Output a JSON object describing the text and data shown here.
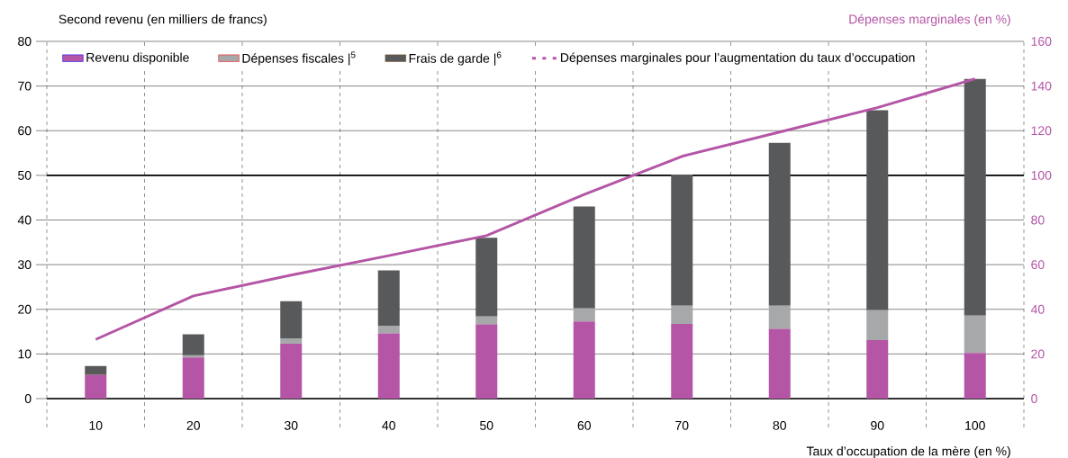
{
  "chart_data": {
    "type": "bar",
    "stacked": true,
    "ylabel": "Second revenu (en milliers de francs)",
    "y2label": "Dépenses marginales (en %)",
    "xlabel": "Taux d’occupation de la mère (en %)",
    "categories": [
      "10",
      "20",
      "30",
      "40",
      "50",
      "60",
      "70",
      "80",
      "90",
      "100"
    ],
    "series": [
      {
        "name": "Revenu disponible",
        "color": "#b455a5",
        "values": [
          5.3,
          9.2,
          12.3,
          14.6,
          16.6,
          17.3,
          16.7,
          15.6,
          13.1,
          10.2
        ]
      },
      {
        "name": "Dépenses fiscales |$^{5}$",
        "color": "#a7a8aa",
        "values": [
          0,
          0.5,
          1.2,
          1.6,
          1.8,
          2.9,
          4.1,
          5.2,
          6.7,
          8.4
        ]
      },
      {
        "name": "Frais de garde |$^{6}$",
        "color": "#58595b",
        "values": [
          2.0,
          4.7,
          8.3,
          12.5,
          17.6,
          22.8,
          29.4,
          36.5,
          44.8,
          53.0
        ]
      },
      {
        "name": "Dépenses marginales pour l’augmentation du taux d’occupation",
        "type": "line",
        "axis": "y2",
        "color": "#b455a5",
        "marker": "none",
        "values": [
          26.5,
          46,
          55.3,
          64,
          73,
          91.4,
          108.5,
          119.4,
          130.3,
          143.2
        ]
      }
    ],
    "ylim": [
      0,
      80
    ],
    "yticks": [
      0,
      10,
      20,
      30,
      40,
      50,
      60,
      70,
      80
    ],
    "y2lim": [
      0,
      160
    ],
    "y2ticks": [
      0,
      20,
      40,
      60,
      80,
      100,
      120,
      140,
      160
    ],
    "ref_lines": [
      {
        "axis": "y",
        "value": 50,
        "color": "#000000"
      }
    ],
    "grid": "y",
    "legend": "top"
  }
}
